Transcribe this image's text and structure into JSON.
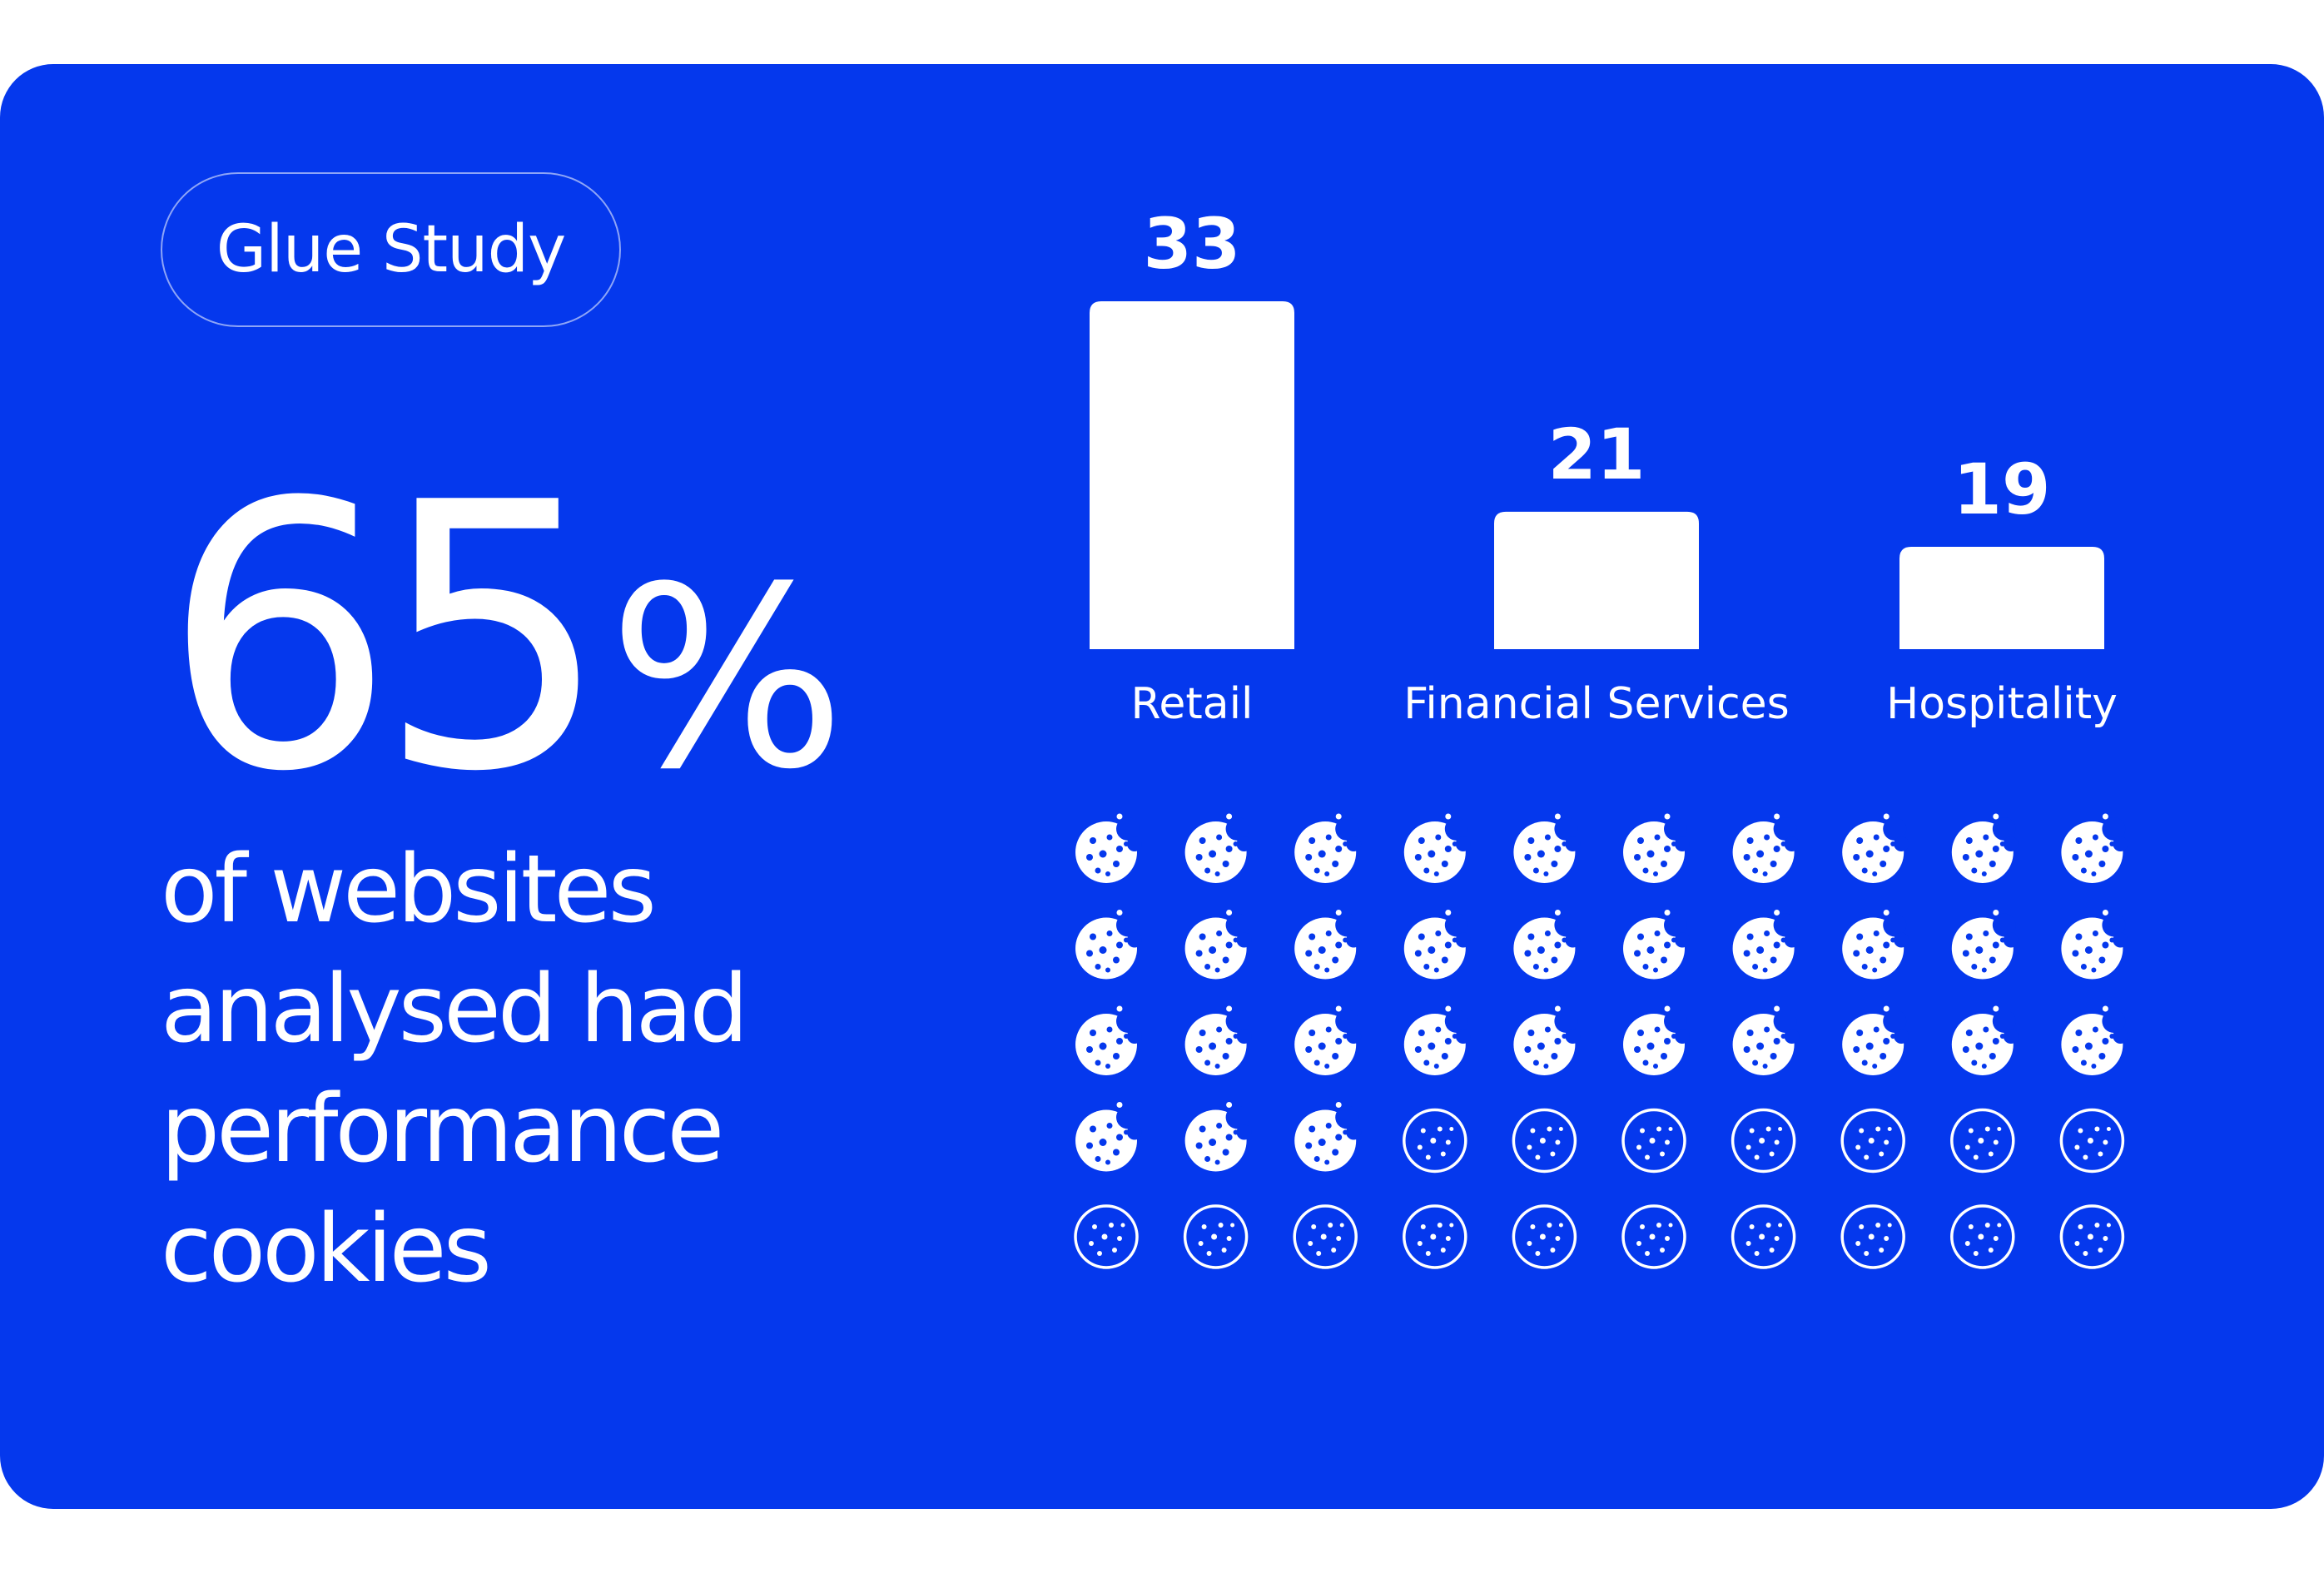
{
  "badge": "Glue Study",
  "headline": {
    "number": "65",
    "unit": "%",
    "lines": [
      "of websites",
      "analysed had",
      "performance",
      "cookies"
    ]
  },
  "colors": {
    "background": "#0538ed",
    "foreground": "#ffffff"
  },
  "chart_data": {
    "type": "bar",
    "categories": [
      "Retail",
      "Financial Services",
      "Hospitality"
    ],
    "values": [
      33,
      21,
      19
    ],
    "title": "",
    "xlabel": "",
    "ylabel": ""
  },
  "cookie_grid": {
    "total": 50,
    "filled": 33,
    "filled_icon": "bitten-cookie-icon",
    "empty_icon": "cookie-outline-icon"
  }
}
